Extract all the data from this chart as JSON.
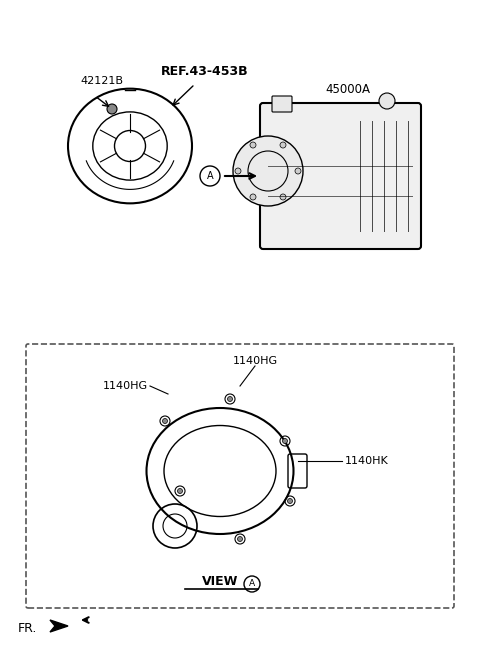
{
  "bg_color": "#ffffff",
  "label_42121B": "42121B",
  "label_ref": "REF.43-453B",
  "label_45000A": "45000A",
  "label_1140HG_top": "1140HG",
  "label_1140HG_left": "1140HG",
  "label_1140HK": "1140HK",
  "label_view": "VIEW",
  "label_A_circle": "A",
  "label_FR": "FR.",
  "font_color": "#000000",
  "line_color": "#000000"
}
